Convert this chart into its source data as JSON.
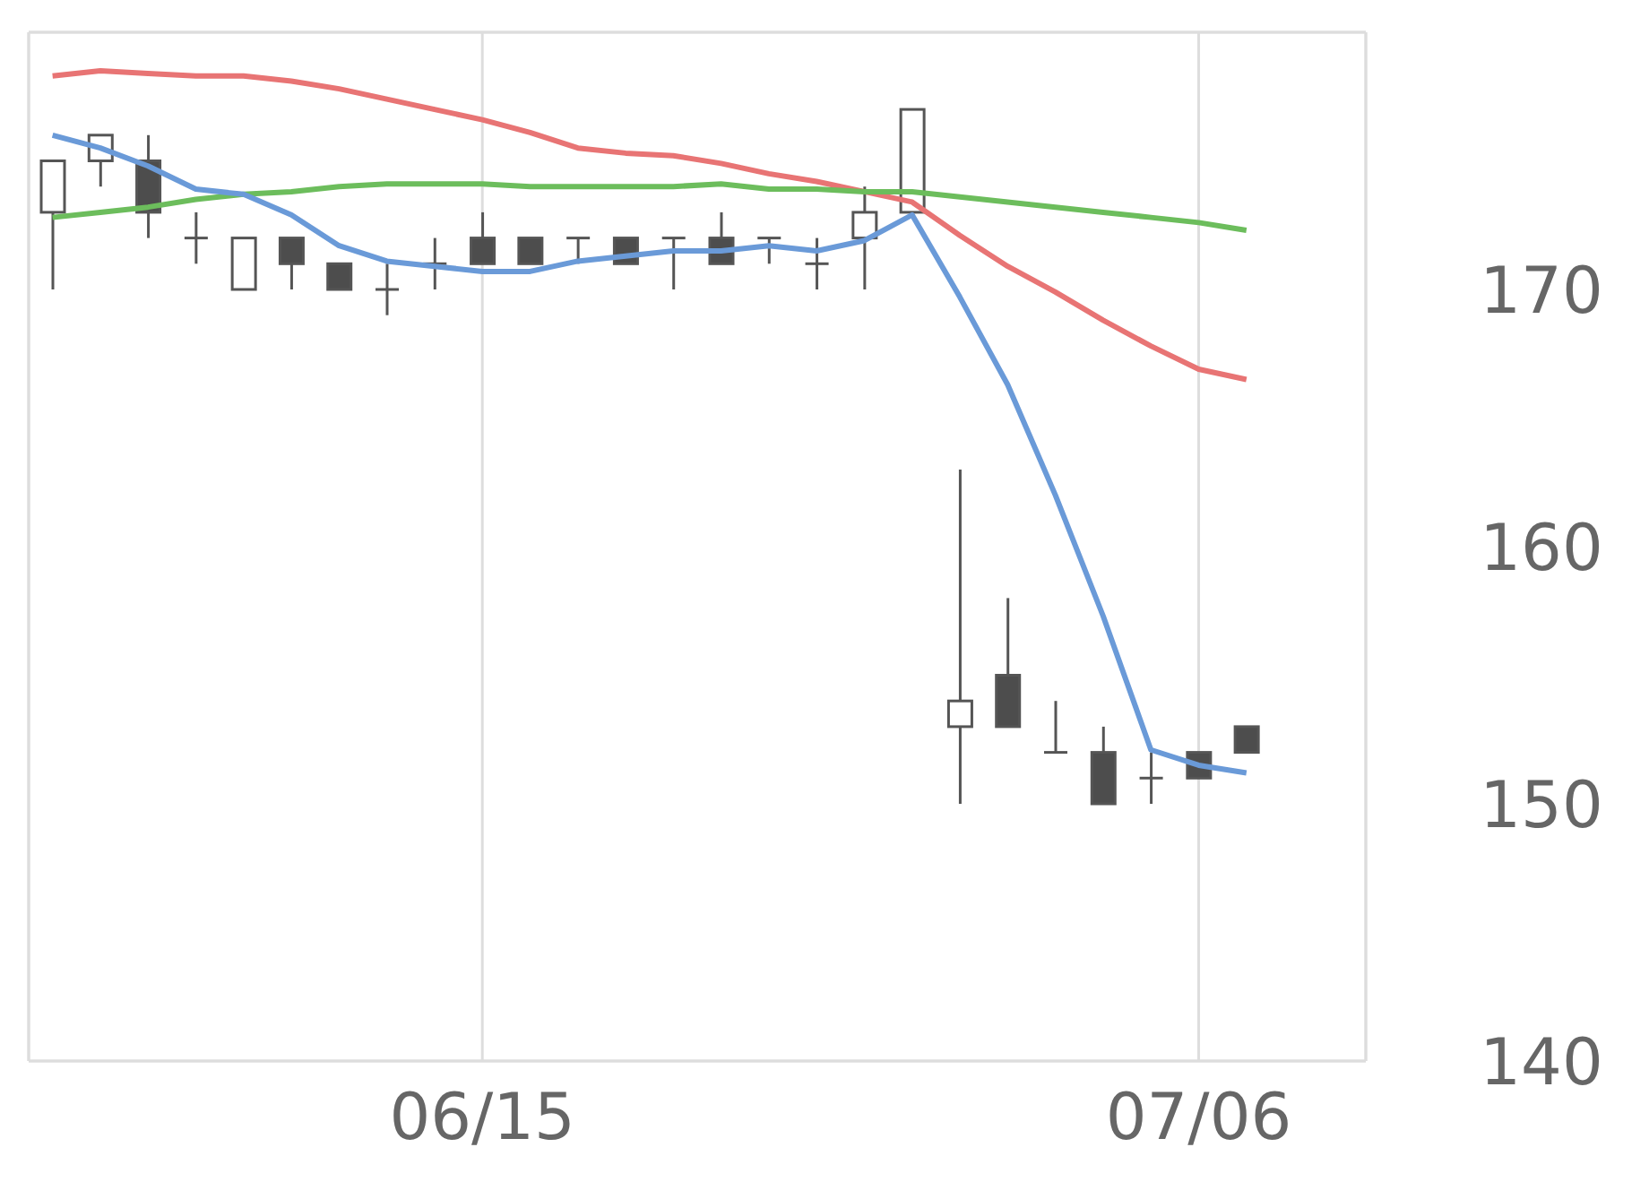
{
  "chart_data": {
    "type": "candlestick",
    "categories": [
      null,
      null,
      null,
      null,
      null,
      null,
      null,
      null,
      null,
      "06/15",
      null,
      null,
      null,
      null,
      null,
      null,
      null,
      null,
      null,
      null,
      null,
      null,
      null,
      null,
      "07/06",
      null,
      null,
      null
    ],
    "ohlc": [
      [
        173,
        175,
        170,
        175
      ],
      [
        175,
        176,
        174,
        176
      ],
      [
        175,
        176,
        172,
        173
      ],
      [
        172,
        173,
        171,
        172
      ],
      [
        170,
        172,
        170,
        172
      ],
      [
        172,
        172,
        170,
        171
      ],
      [
        171,
        171,
        170,
        170
      ],
      [
        170,
        171,
        169,
        170
      ],
      [
        171,
        172,
        170,
        171
      ],
      [
        172,
        173,
        171,
        171
      ],
      [
        172,
        172,
        171,
        171
      ],
      [
        172,
        172,
        171,
        172
      ],
      [
        172,
        172,
        171,
        171
      ],
      [
        172,
        172,
        170,
        172
      ],
      [
        172,
        173,
        171,
        171
      ],
      [
        172,
        172,
        171,
        172
      ],
      [
        171,
        172,
        170,
        171
      ],
      [
        172,
        174,
        170,
        173
      ],
      [
        173,
        177,
        173,
        177
      ],
      [
        153,
        163,
        150,
        154
      ],
      [
        155,
        158,
        153,
        153
      ],
      [
        152,
        154,
        152,
        152
      ],
      [
        152,
        153,
        150,
        150
      ],
      [
        151,
        152,
        150,
        151
      ],
      [
        152,
        152,
        151,
        151
      ],
      [
        153,
        153,
        152,
        152
      ],
      null,
      null
    ],
    "series": [
      {
        "type": "line",
        "color": "#e87474",
        "values": [
          178.3,
          178.5,
          178.4,
          178.3,
          178.3,
          178.1,
          177.8,
          177.4,
          177.0,
          176.6,
          176.1,
          175.5,
          175.3,
          175.2,
          174.9,
          174.5,
          174.2,
          173.8,
          173.4,
          172.1,
          170.9,
          169.9,
          168.8,
          167.8,
          166.9,
          166.5,
          null,
          null
        ]
      },
      {
        "type": "line",
        "color": "#6cbd5c",
        "values": [
          172.8,
          173.0,
          173.2,
          173.5,
          173.7,
          173.8,
          174.0,
          174.1,
          174.1,
          174.1,
          174.0,
          174.0,
          174.0,
          174.0,
          174.1,
          173.9,
          173.9,
          173.8,
          173.8,
          173.6,
          173.4,
          173.2,
          173.0,
          172.8,
          172.6,
          172.3,
          null,
          null
        ]
      },
      {
        "type": "line",
        "color": "#6a9ad8",
        "values": [
          176.0,
          175.5,
          174.8,
          173.9,
          173.7,
          172.9,
          171.7,
          171.1,
          170.9,
          170.7,
          170.7,
          171.1,
          171.3,
          171.5,
          171.5,
          171.7,
          171.5,
          171.9,
          172.9,
          169.7,
          166.3,
          162.0,
          157.3,
          152.1,
          151.5,
          151.2,
          null,
          null
        ]
      }
    ],
    "ylim": [
      140,
      180
    ],
    "yticks": [
      140,
      150,
      160,
      170
    ],
    "grid": true,
    "marker": "none"
  }
}
